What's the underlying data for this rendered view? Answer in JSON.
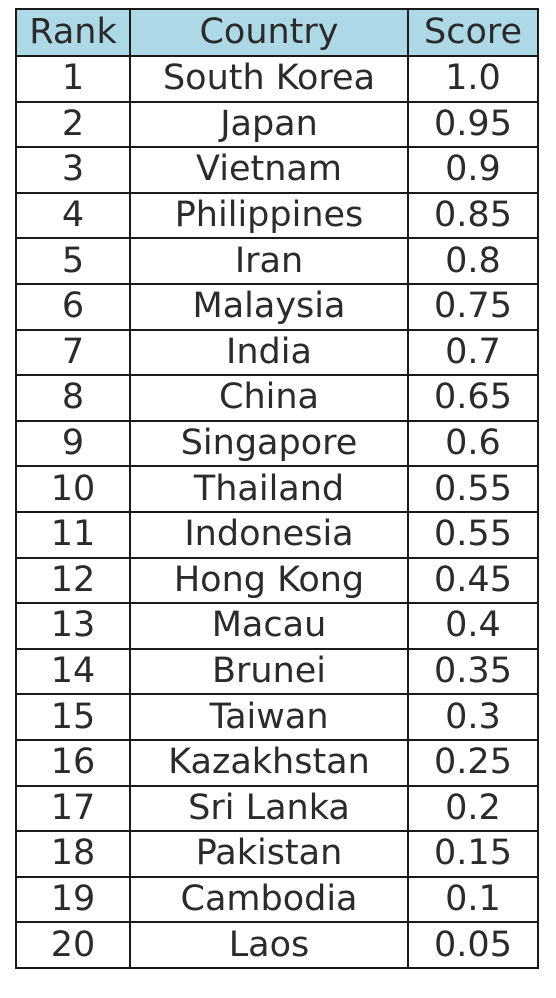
{
  "chart_data": {
    "type": "table",
    "header_color": "#add8e6",
    "columns": [
      "Rank",
      "Country",
      "Score"
    ],
    "rows": [
      [
        "1",
        "South Korea",
        "1.0"
      ],
      [
        "2",
        "Japan",
        "0.95"
      ],
      [
        "3",
        "Vietnam",
        "0.9"
      ],
      [
        "4",
        "Philippines",
        "0.85"
      ],
      [
        "5",
        "Iran",
        "0.8"
      ],
      [
        "6",
        "Malaysia",
        "0.75"
      ],
      [
        "7",
        "India",
        "0.7"
      ],
      [
        "8",
        "China",
        "0.65"
      ],
      [
        "9",
        "Singapore",
        "0.6"
      ],
      [
        "10",
        "Thailand",
        "0.55"
      ],
      [
        "11",
        "Indonesia",
        "0.55"
      ],
      [
        "12",
        "Hong Kong",
        "0.45"
      ],
      [
        "13",
        "Macau",
        "0.4"
      ],
      [
        "14",
        "Brunei",
        "0.35"
      ],
      [
        "15",
        "Taiwan",
        "0.3"
      ],
      [
        "16",
        "Kazakhstan",
        "0.25"
      ],
      [
        "17",
        "Sri Lanka",
        "0.2"
      ],
      [
        "18",
        "Pakistan",
        "0.15"
      ],
      [
        "19",
        "Cambodia",
        "0.1"
      ],
      [
        "20",
        "Laos",
        "0.05"
      ]
    ]
  }
}
